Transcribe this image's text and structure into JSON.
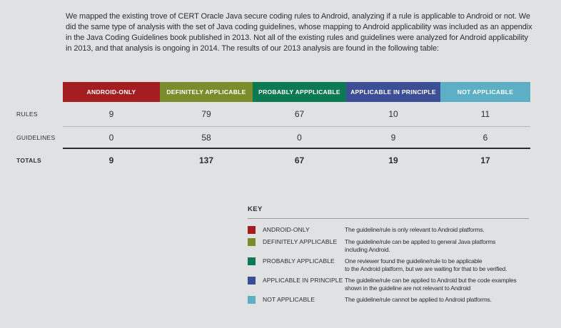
{
  "colors": {
    "background": "#e0e1e2",
    "text": "#2e2e2e",
    "android_only": "#a31d21",
    "definitely_applicable": "#7a8d2d",
    "probably_applicable": "#0b7a52",
    "applicable_in_principle": "#3c4e95",
    "not_applicable": "#5cafc4"
  },
  "intro": {
    "text": "We mapped the existing trove of CERT Oracle Java secure coding rules to Android, analyzing if a rule is applicable to Android or not. We\ndid the same type of analysis with the set of Java coding guidelines, whose mapping to Android applicability was included as an appendix\nin the Java Coding Guidelines book published in 2013. Not all of the existing rules and guidelines were analyzed for Android applicability\nin 2013, and that analysis is ongoing in 2014. The results of our 2013 analysis are found in the following table:"
  },
  "table": {
    "columns": [
      {
        "label": "ANDROID-ONLY",
        "color": "#a31d21"
      },
      {
        "label": "DEFINITELY APPLICABLE",
        "color": "#7a8d2d"
      },
      {
        "label": "PROBABLY APPPLICABLE",
        "color": "#0b7a52"
      },
      {
        "label": "APPLICABLE IN PRINCIPLE",
        "color": "#3c4e95"
      },
      {
        "label": "NOT APPLICABLE",
        "color": "#5cafc4"
      }
    ],
    "rows": [
      {
        "label": "RULES",
        "values": [
          "9",
          "79",
          "67",
          "10",
          "11"
        ]
      },
      {
        "label": "GUIDELINES",
        "values": [
          "0",
          "58",
          "0",
          "9",
          "6"
        ]
      },
      {
        "label": "TOTALS",
        "values": [
          "9",
          "137",
          "67",
          "19",
          "17"
        ]
      }
    ]
  },
  "key": {
    "title": "KEY",
    "entries": [
      {
        "label": "ANDROID-ONLY",
        "color": "#a31d21",
        "description": "The guideline/rule is only relevant to Android platforms."
      },
      {
        "label": "DEFINITELY APPLICABLE",
        "color": "#7a8d2d",
        "description": "The guideline/rule can be applied to general Java platforms\nincluding Android."
      },
      {
        "label": "PROBABLY APPLICABLE",
        "color": "#0b7a52",
        "description": "One reviewer found the guideline/rule to be applicable\nto the Android platform, but we are waiting for that to be verified."
      },
      {
        "label": "APPLICABLE IN PRINCIPLE",
        "color": "#3c4e95",
        "description": "The guideline/rule can be applied to Android but the code examples\nshown in the guideline are not relevant to Android"
      },
      {
        "label": "NOT APPLICABLE",
        "color": "#5cafc4",
        "description": "The guideline/rule cannot be applied to Android platforms."
      }
    ]
  }
}
